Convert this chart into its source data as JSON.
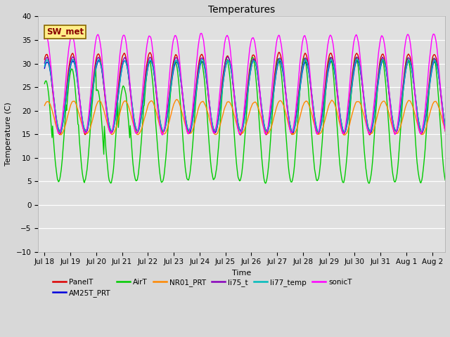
{
  "title": "Temperatures",
  "xlabel": "Time",
  "ylabel": "Temperature (C)",
  "ylim": [
    -10,
    40
  ],
  "xlim_start": 17.75,
  "xlim_end": 33.5,
  "xtick_labels": [
    "Jul 18",
    "Jul 19",
    "Jul 20",
    "Jul 21",
    "Jul 22",
    "Jul 23",
    "Jul 24",
    "Jul 25",
    "Jul 26",
    "Jul 27",
    "Jul 28",
    "Jul 29",
    "Jul 30",
    "Jul 31",
    "Aug 1",
    "Aug 2"
  ],
  "xtick_positions": [
    18,
    19,
    20,
    21,
    22,
    23,
    24,
    25,
    26,
    27,
    28,
    29,
    30,
    31,
    32,
    33
  ],
  "series_order": [
    "PanelT",
    "AM25T_PRT",
    "AirT",
    "NR01_PRT",
    "li75_t",
    "li77_temp",
    "sonicT"
  ],
  "series": {
    "PanelT": {
      "color": "#dd0000",
      "lw": 1.0
    },
    "AM25T_PRT": {
      "color": "#0000dd",
      "lw": 1.0
    },
    "AirT": {
      "color": "#00cc00",
      "lw": 1.0
    },
    "NR01_PRT": {
      "color": "#ff8800",
      "lw": 1.0
    },
    "li75_t": {
      "color": "#8800bb",
      "lw": 1.0
    },
    "li77_temp": {
      "color": "#00bbbb",
      "lw": 1.0
    },
    "sonicT": {
      "color": "#ff00ff",
      "lw": 1.0
    }
  },
  "legend_label": "SW_met",
  "legend_box_facecolor": "#ffee88",
  "legend_box_edgecolor": "#886600",
  "legend_text_color": "#880000",
  "bg_color": "#d8d8d8",
  "plot_bg_color": "#e0e0e0",
  "grid_color": "#ffffff",
  "title_fontsize": 10,
  "axis_label_fontsize": 8,
  "tick_fontsize": 7.5,
  "legend_fontsize": 7.5,
  "figwidth": 6.4,
  "figheight": 4.8,
  "dpi": 100
}
